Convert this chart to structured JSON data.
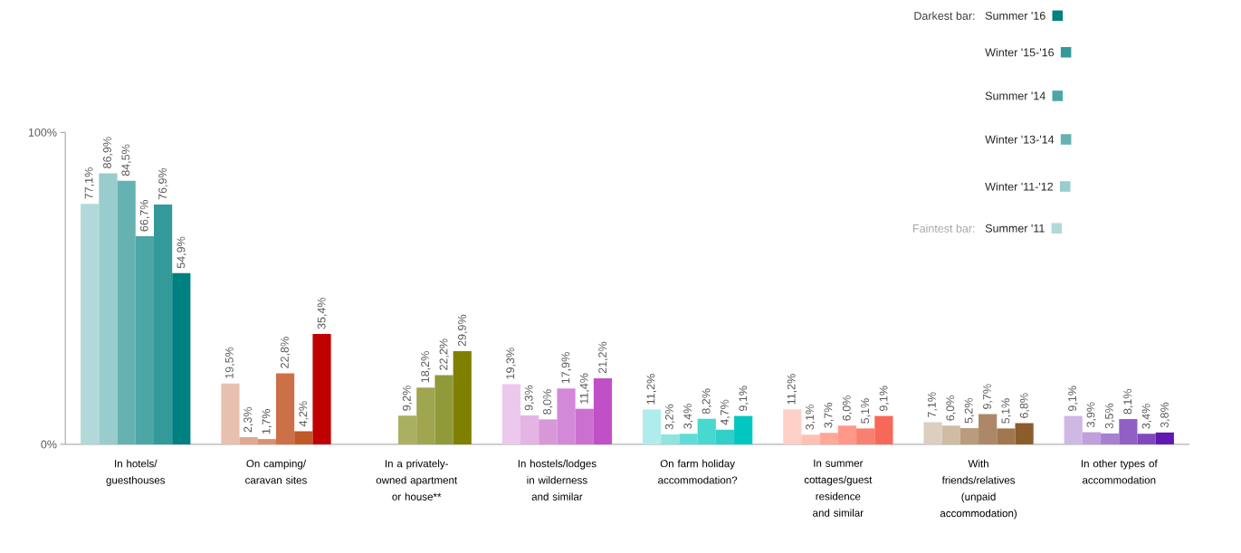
{
  "chart_data": {
    "type": "bar",
    "categories": [
      "In hotels/ guesthouses",
      "On camping/ caravan sites",
      "In a privately-owned apartment or house**",
      "In hostels/lodges in wilderness and similar",
      "On farm holiday accommodation?",
      "In summer cottages/guest residence and similar",
      "With friends/relatives (unpaid accommodation)",
      "In other types of accommodation"
    ],
    "series": [
      {
        "name": "Summer '11",
        "values": [
          77.1,
          19.5,
          null,
          19.3,
          11.2,
          11.2,
          7.1,
          9.1
        ],
        "value_labels": [
          "77,1%",
          "19,5%",
          null,
          "19,3%",
          "11,2%",
          "11,2%",
          "7,1%",
          "9,1%"
        ],
        "colors": [
          "#b2d9d9",
          "#e8c0b0",
          null,
          "#ecc8ec",
          "#b0ecec",
          "#ffd0c8",
          "#dccfc0",
          "#d0b8e4"
        ]
      },
      {
        "name": "Winter '11-'12",
        "values": [
          86.9,
          2.3,
          null,
          9.3,
          3.2,
          3.1,
          6.0,
          3.9
        ],
        "value_labels": [
          "86,9%",
          "2,3%",
          null,
          "9,3%",
          "3,2%",
          "3,1%",
          "6,0%",
          "3,9%"
        ],
        "colors": [
          "#99cccc",
          "#e0a890",
          null,
          "#e4b4e4",
          "#90e4e0",
          "#ffc0b4",
          "#d0bca4",
          "#c0a0dc"
        ]
      },
      {
        "name": "Winter '13-'14",
        "values": [
          84.5,
          1.7,
          9.2,
          8.0,
          3.4,
          3.7,
          5.2,
          3.5
        ],
        "value_labels": [
          "84,5%",
          "1,7%",
          "9,2%",
          "8,0%",
          "3,4%",
          "3,7%",
          "5,2%",
          "3,5%"
        ],
        "colors": [
          "#66b2b2",
          "#d89070",
          "#aab060",
          "#d898d8",
          "#60dcd8",
          "#ffa898",
          "#b89c7c",
          "#a880d0"
        ]
      },
      {
        "name": "Summer '14",
        "values": [
          66.7,
          22.8,
          18.2,
          17.9,
          8.2,
          6.0,
          9.7,
          8.1
        ],
        "value_labels": [
          "66,7%",
          "22,8%",
          "18,2%",
          "17,9%",
          "8,2%",
          "6,0%",
          "9,7%",
          "8,1%"
        ],
        "colors": [
          "#4ca6a6",
          "#cc7048",
          "#a0a650",
          "#d488d8",
          "#48d8d0",
          "#ff9888",
          "#ac8868",
          "#9060c4"
        ]
      },
      {
        "name": "Winter '15-'16",
        "values": [
          76.9,
          4.2,
          22.2,
          11.4,
          4.7,
          5.1,
          5.1,
          3.4
        ],
        "value_labels": [
          "76,9%",
          "4,2%",
          "22,2%",
          "11,4%",
          "4,7%",
          "5,1%",
          "5,1%",
          "3,4%"
        ],
        "colors": [
          "#339999",
          "#c05828",
          "#909a38",
          "#cc70d0",
          "#30d0c8",
          "#f88070",
          "#a07850",
          "#8048bc"
        ]
      },
      {
        "name": "Summer '16",
        "values": [
          54.9,
          35.4,
          29.9,
          21.2,
          9.1,
          9.1,
          6.8,
          3.8
        ],
        "value_labels": [
          "54,9%",
          "35,4%",
          "29,9%",
          "21,2%",
          "9,1%",
          "9,1%",
          "6,8%",
          "3,8%"
        ],
        "colors": [
          "#008080",
          "#c00000",
          "#808000",
          "#c050c8",
          "#00c8c0",
          "#f86858",
          "#8c5c2c",
          "#6018b0"
        ]
      }
    ],
    "ylim": [
      0,
      100
    ],
    "yticks": [
      {
        "value": 0,
        "label": "0%"
      },
      {
        "value": 100,
        "label": "100%"
      }
    ],
    "legend": "top right",
    "annotations": [
      "Darkest bar:",
      "Faintest bar:"
    ]
  }
}
